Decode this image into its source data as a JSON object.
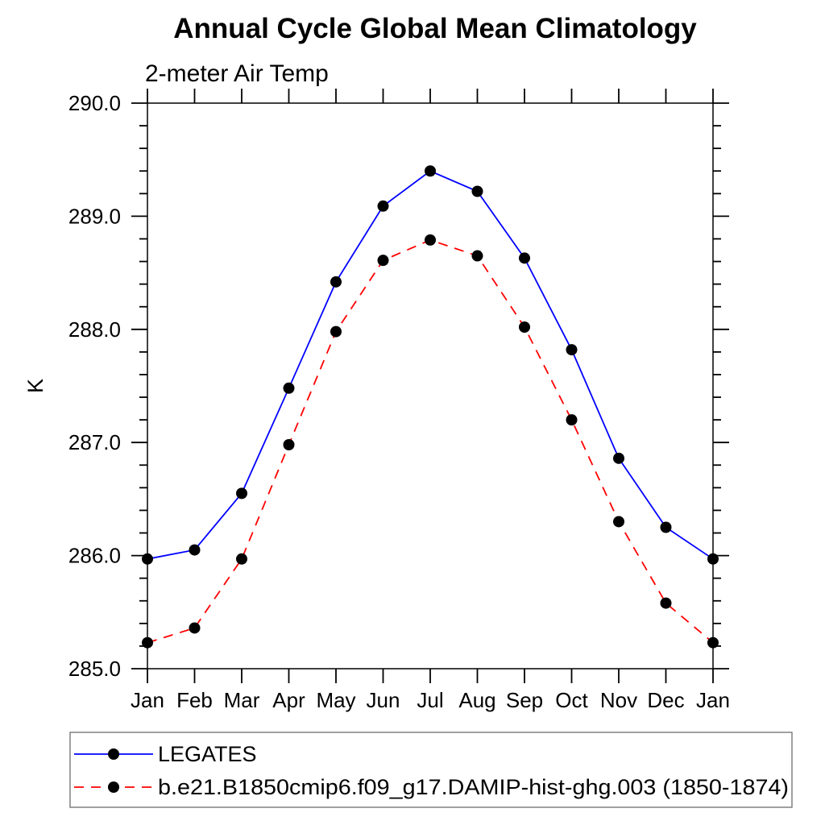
{
  "title": "Annual Cycle Global Mean Climatology",
  "subtitle": "2-meter Air Temp",
  "chart_data": {
    "type": "line",
    "x_categories": [
      "Jan",
      "Feb",
      "Mar",
      "Apr",
      "May",
      "Jun",
      "Jul",
      "Aug",
      "Sep",
      "Oct",
      "Nov",
      "Dec",
      "Jan"
    ],
    "xlabel": "",
    "ylabel": "K",
    "ylim": [
      285.0,
      290.0
    ],
    "ytick_step": 1.0,
    "ytick_minor_step": 0.2,
    "ytick_labels": [
      "285.0",
      "286.0",
      "287.0",
      "288.0",
      "289.0",
      "290.0"
    ],
    "grid": false,
    "legend_position": "bottom-left",
    "frame_color": "#000000",
    "series": [
      {
        "name": "LEGATES",
        "color": "#0000ff",
        "line_style": "solid",
        "marker": "filled-circle",
        "marker_color": "#000000",
        "values": [
          285.97,
          286.05,
          286.55,
          287.48,
          288.42,
          289.09,
          289.4,
          289.22,
          288.63,
          287.82,
          286.86,
          286.25,
          285.97
        ]
      },
      {
        "name": "b.e21.B1850cmip6.f09_g17.DAMIP-hist-ghg.003 (1850-1874)",
        "color": "#ff0000",
        "line_style": "dashed",
        "marker": "filled-circle",
        "marker_color": "#000000",
        "values": [
          285.23,
          285.36,
          285.97,
          286.98,
          287.98,
          288.61,
          288.79,
          288.65,
          288.02,
          287.2,
          286.3,
          285.58,
          285.23
        ]
      }
    ]
  }
}
